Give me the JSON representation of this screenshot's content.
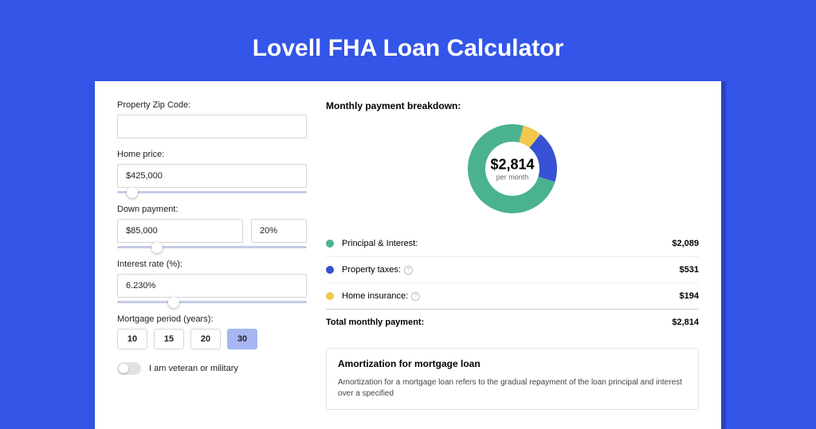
{
  "page": {
    "title": "Lovell FHA Loan Calculator",
    "background_color": "#3355e8",
    "card_background": "#ffffff"
  },
  "form": {
    "zip": {
      "label": "Property Zip Code:",
      "value": ""
    },
    "home_price": {
      "label": "Home price:",
      "value": "$425,000",
      "slider_pct": 8
    },
    "down_payment": {
      "label": "Down payment:",
      "value": "$85,000",
      "pct_value": "20%",
      "slider_pct": 21
    },
    "interest_rate": {
      "label": "Interest rate (%):",
      "value": "6.230%",
      "slider_pct": 30
    },
    "mortgage_period": {
      "label": "Mortgage period (years):",
      "options": [
        "10",
        "15",
        "20",
        "30"
      ],
      "selected": "30"
    },
    "veteran": {
      "label": "I am veteran or military",
      "on": false
    }
  },
  "breakdown": {
    "title": "Monthly payment breakdown:",
    "center_amount": "$2,814",
    "center_sub": "per month",
    "donut": {
      "slices": [
        {
          "name": "principal_interest",
          "value": 2089,
          "color": "#4bb28f"
        },
        {
          "name": "property_taxes",
          "value": 531,
          "color": "#3651d3"
        },
        {
          "name": "home_insurance",
          "value": 194,
          "color": "#f1c84b"
        }
      ],
      "thickness": 22,
      "radius": 56
    },
    "items": [
      {
        "dot_color": "#4bb28f",
        "label": "Principal & Interest:",
        "value": "$2,089",
        "info": false
      },
      {
        "dot_color": "#3651d3",
        "label": "Property taxes:",
        "value": "$531",
        "info": true
      },
      {
        "dot_color": "#f1c84b",
        "label": "Home insurance:",
        "value": "$194",
        "info": true
      }
    ],
    "total": {
      "label": "Total monthly payment:",
      "value": "$2,814"
    }
  },
  "amortization": {
    "title": "Amortization for mortgage loan",
    "text": "Amortization for a mortgage loan refers to the gradual repayment of the loan principal and interest over a specified"
  }
}
